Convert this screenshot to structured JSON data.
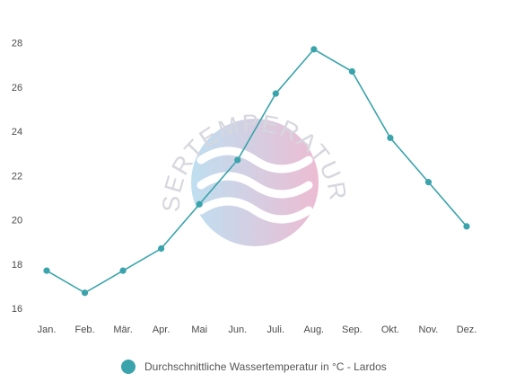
{
  "chart_data": {
    "type": "line",
    "categories": [
      "Jan.",
      "Feb.",
      "Mär.",
      "Apr.",
      "Mai",
      "Jun.",
      "Juli.",
      "Aug.",
      "Sep.",
      "Okt.",
      "Nov.",
      "Dez."
    ],
    "series": [
      {
        "name": "Durchschnittliche Wassertemperatur in °C - Lardos",
        "values": [
          17.7,
          16.7,
          17.7,
          18.7,
          20.7,
          22.7,
          25.7,
          27.7,
          26.7,
          23.7,
          21.7,
          19.7
        ],
        "color": "#3aa3ab"
      }
    ],
    "ylim": [
      16,
      28
    ],
    "yticks": [
      16,
      18,
      20,
      22,
      24,
      26,
      28
    ],
    "grid": false,
    "legend": "bottom"
  },
  "watermark": {
    "text": "WASSERTEMPERATUR.ORG",
    "colors": [
      "#a9d5ec",
      "#e7a6c4"
    ]
  }
}
